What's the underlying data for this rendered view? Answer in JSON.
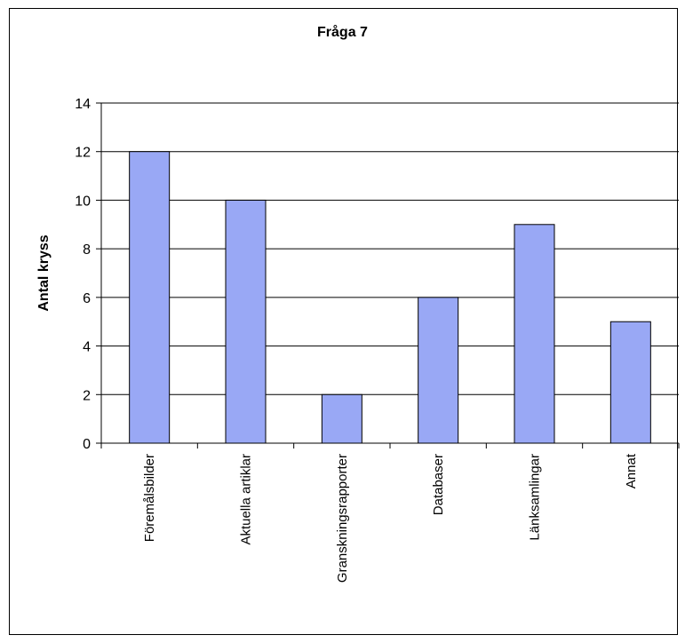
{
  "chart_data": {
    "type": "bar",
    "title": "Fråga 7",
    "ylabel": "Antal kryss",
    "xlabel": "",
    "categories": [
      "Föremålsbilder",
      "Aktuella artiklar",
      "Granskningsrapporter",
      "Databaser",
      "Länksamlingar",
      "Annat"
    ],
    "values": [
      12,
      10,
      2,
      6,
      9,
      5
    ],
    "ylim": [
      0,
      14
    ],
    "yticks": [
      0,
      2,
      4,
      6,
      8,
      10,
      12,
      14
    ],
    "grid": true,
    "bar_color": "#99a8f5"
  }
}
